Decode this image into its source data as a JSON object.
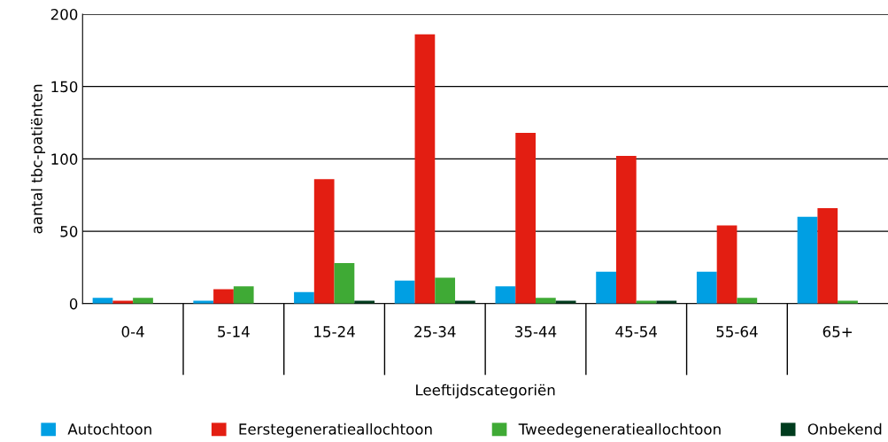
{
  "chart_data": {
    "type": "bar",
    "ylabel": "aantal tbc-patiënten",
    "xlabel": "Leeftijdscategoriën",
    "categories": [
      "0-4",
      "5-14",
      "15-24",
      "25-34",
      "35-44",
      "45-54",
      "55-64",
      "65+"
    ],
    "series": [
      {
        "name": "Autochtoon",
        "color": "#009fe3",
        "values": [
          4,
          2,
          8,
          16,
          12,
          22,
          22,
          60
        ]
      },
      {
        "name": "Eerstegeneratieallochtoon",
        "color": "#e31e12",
        "values": [
          2,
          10,
          86,
          186,
          118,
          102,
          54,
          66
        ]
      },
      {
        "name": "Tweedegeneratieallochtoon",
        "color": "#3faa35",
        "values": [
          4,
          12,
          28,
          18,
          4,
          2,
          4,
          2
        ]
      },
      {
        "name": "Onbekend",
        "color": "#003c1e",
        "values": [
          0,
          0,
          2,
          2,
          2,
          2,
          0,
          0
        ]
      }
    ],
    "ylim": [
      0,
      200
    ],
    "yticks": [
      0,
      50,
      100,
      150,
      200
    ],
    "grid": "y",
    "legend": "bottom"
  }
}
